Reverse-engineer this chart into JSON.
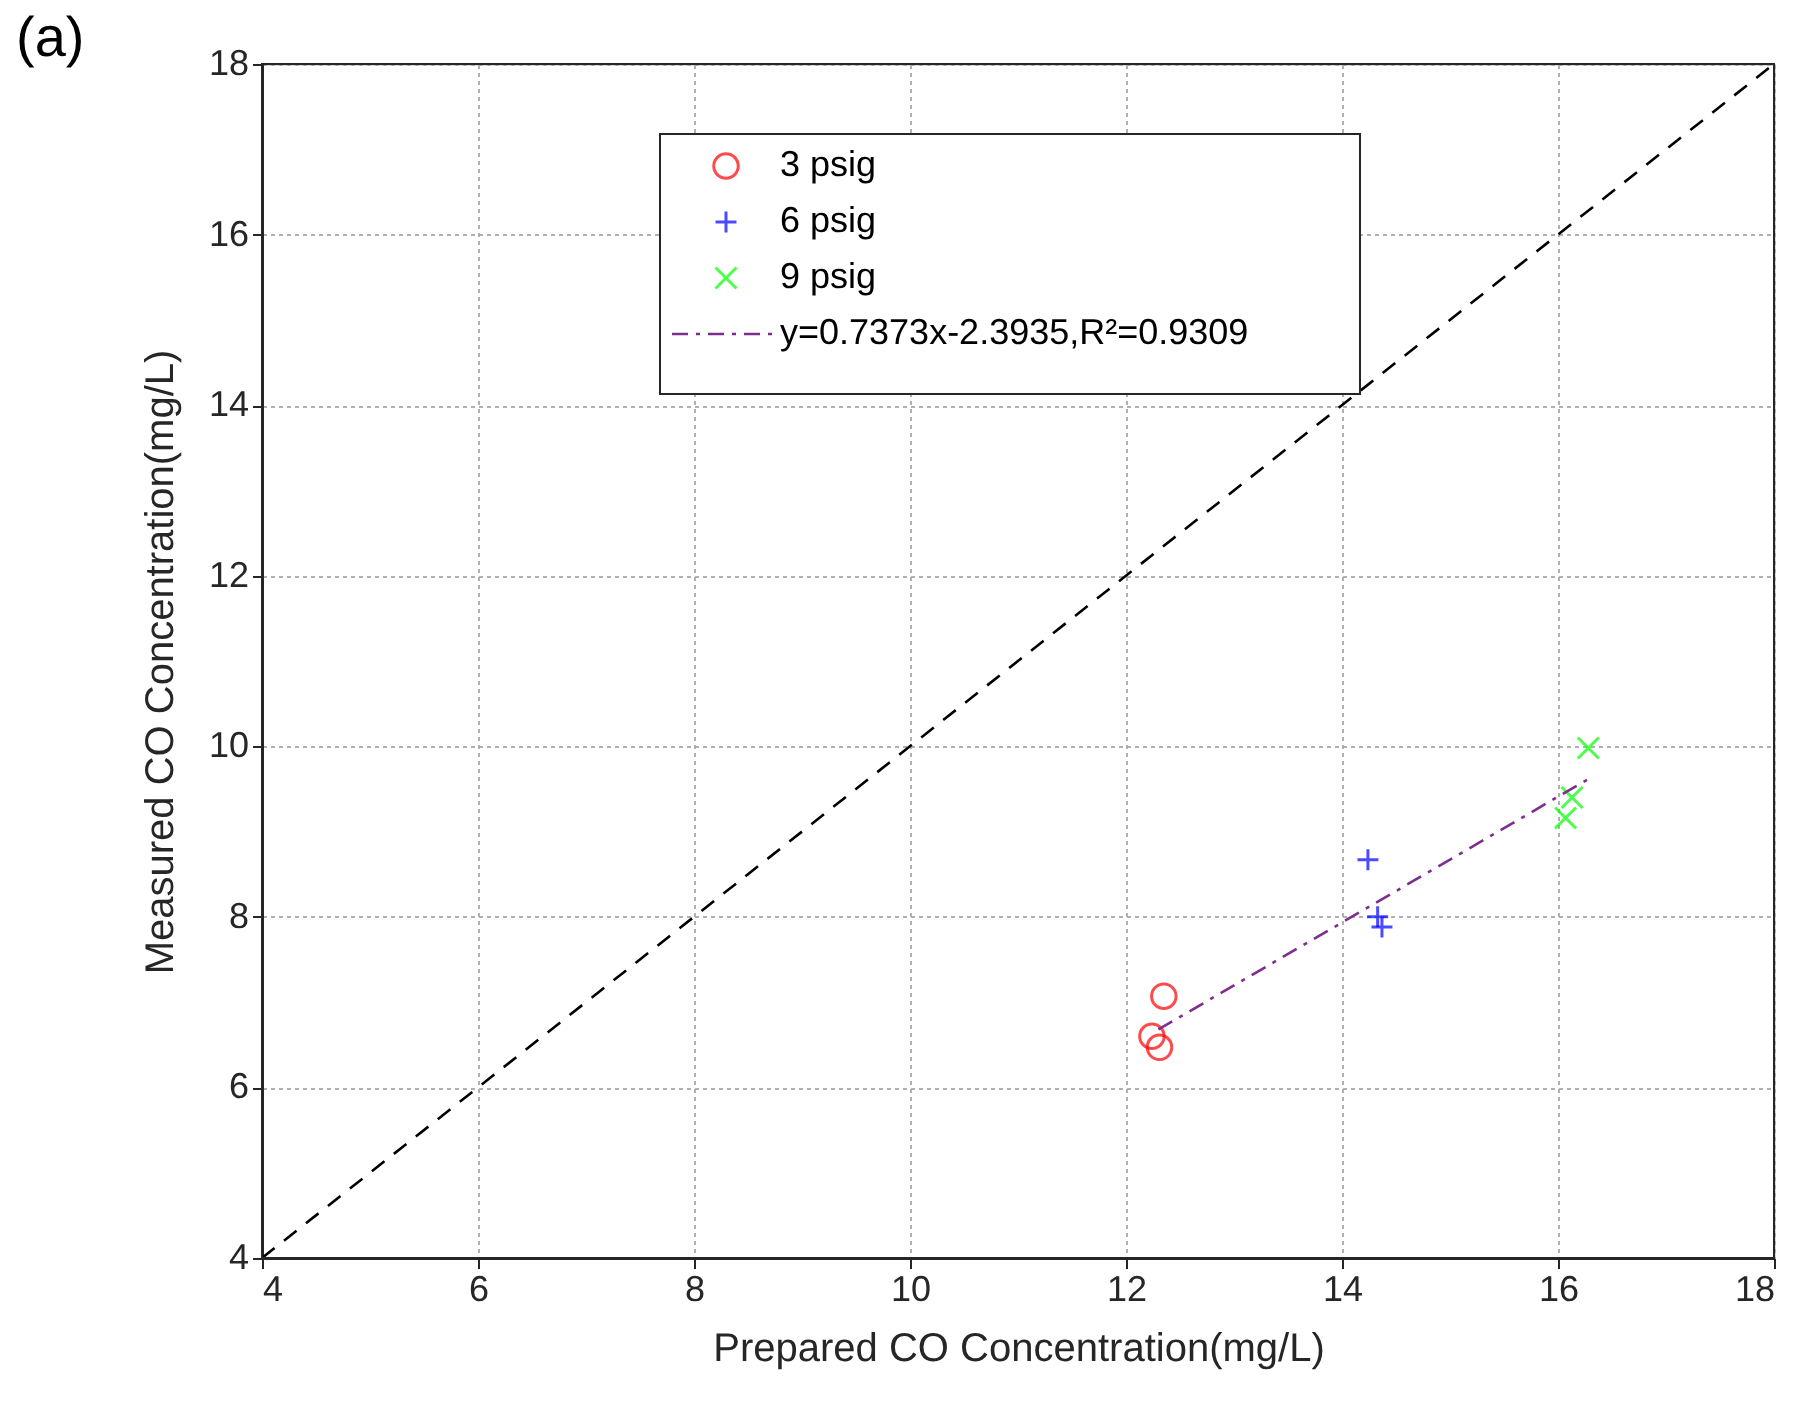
{
  "chart_data": {
    "type": "scatter",
    "xlabel": "Prepared CO Concentration(mg/L)",
    "ylabel": "Measured CO Concentration(mg/L)",
    "annotations": [
      "(a)"
    ],
    "xlim": [
      4,
      18
    ],
    "ylim": [
      4,
      18
    ],
    "xticks": [
      4,
      6,
      8,
      10,
      12,
      14,
      16,
      18
    ],
    "yticks": [
      4,
      6,
      8,
      10,
      12,
      14,
      16,
      18
    ],
    "grid": true,
    "legend": "top",
    "series": [
      {
        "name": "3 psig",
        "color": "#ff0000",
        "marker": "circle",
        "x": [
          12.35,
          12.24,
          12.31
        ],
        "values": [
          7.07,
          6.6,
          6.47
        ]
      },
      {
        "name": "6 psig",
        "color": "#0000ff",
        "marker": "cross",
        "x": [
          14.24,
          14.33,
          14.37
        ],
        "values": [
          8.67,
          8.0,
          7.88
        ]
      },
      {
        "name": "9 psig",
        "color": "#00ff00",
        "marker": "x",
        "x": [
          16.13,
          16.07,
          16.28
        ],
        "values": [
          9.4,
          9.16,
          9.98
        ]
      },
      {
        "name": "y=0.7373x-2.3935,R²=0.9309",
        "type": "line",
        "color": "#7e2f8e",
        "line_style": "dashed",
        "x": [
          12.3,
          16.3
        ],
        "values": [
          6.68,
          9.63
        ]
      },
      {
        "type": "line",
        "color": "#000000",
        "line_style": "dashed",
        "x": [
          4,
          18
        ],
        "values": [
          4,
          18
        ]
      }
    ]
  }
}
